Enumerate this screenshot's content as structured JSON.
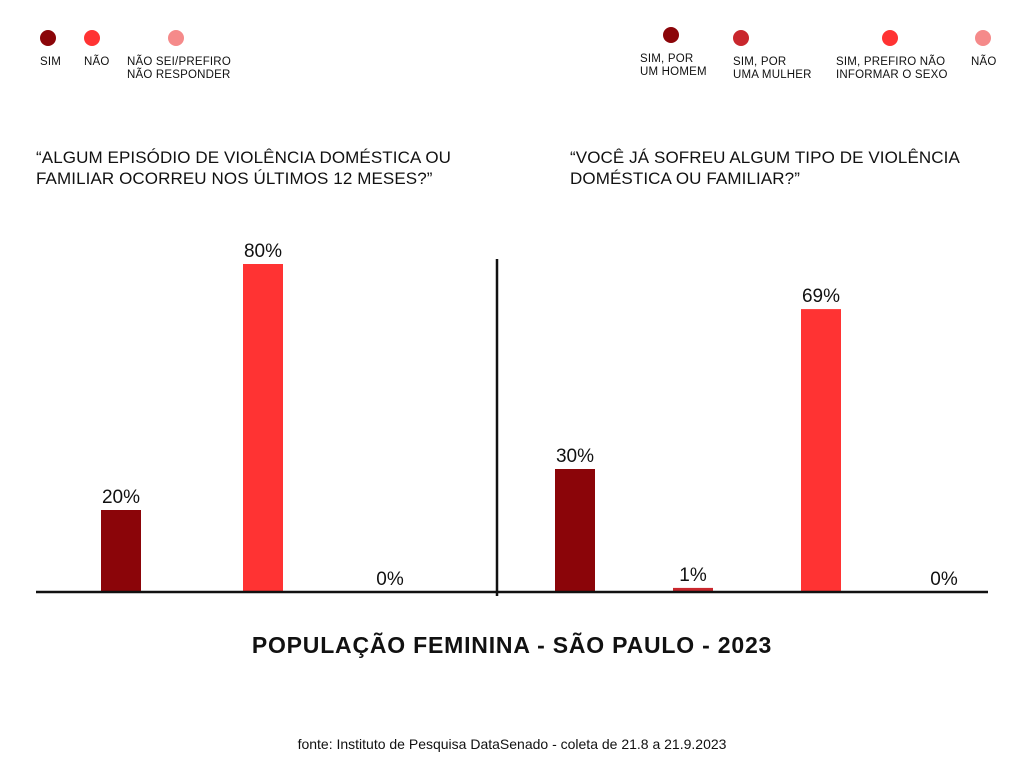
{
  "legend_left": [
    {
      "label": "SIM",
      "color": "#8B0509"
    },
    {
      "label": "NÃO",
      "color": "#FF3333"
    },
    {
      "label": "NÃO SEI/PREFIRO\nNÃO RESPONDER",
      "color": "#F58A8A"
    }
  ],
  "legend_right": [
    {
      "label": "SIM, POR\nUM HOMEM",
      "color": "#8B0509"
    },
    {
      "label": "SIM, POR\nUMA MULHER",
      "color": "#C9272D"
    },
    {
      "label": "SIM, PREFIRO NÃO\nINFORMAR O SEXO",
      "color": "#FF3333"
    },
    {
      "label": "NÃO",
      "color": "#F58A8A"
    }
  ],
  "chart_data": [
    {
      "type": "bar",
      "title": "“ALGUM EPISÓDIO DE VIOLÊNCIA DOMÉSTICA OU\nFAMILIAR OCORREU NOS ÚLTIMOS 12 MESES?”",
      "categories": [
        "SIM",
        "NÃO",
        "NÃO SEI/PREFIRO NÃO RESPONDER"
      ],
      "values": [
        20,
        80,
        0
      ],
      "value_labels": [
        "20%",
        "80%",
        "0%"
      ],
      "colors": [
        "#8B0509",
        "#FF3333",
        "#F58A8A"
      ],
      "ylim": [
        0,
        100
      ]
    },
    {
      "type": "bar",
      "title": "“VOCÊ JÁ SOFREU ALGUM TIPO DE VIOLÊNCIA\nDOMÉSTICA OU FAMILIAR?”",
      "categories": [
        "SIM, POR UM HOMEM",
        "SIM, POR UMA MULHER",
        "SIM, PREFIRO NÃO INFORMAR O SEXO",
        "NÃO"
      ],
      "values": [
        30,
        1,
        69,
        0
      ],
      "value_labels": [
        "30%",
        "1%",
        "69%",
        "0%"
      ],
      "colors": [
        "#8B0509",
        "#C9272D",
        "#FF3333",
        "#F58A8A"
      ],
      "ylim": [
        0,
        100
      ]
    }
  ],
  "footer_title": "POPULAÇÃO FEMININA - SÃO PAULO - 2023",
  "source": "fonte: Instituto de Pesquisa DataSenado -  coleta de 21.8 a 21.9.2023"
}
